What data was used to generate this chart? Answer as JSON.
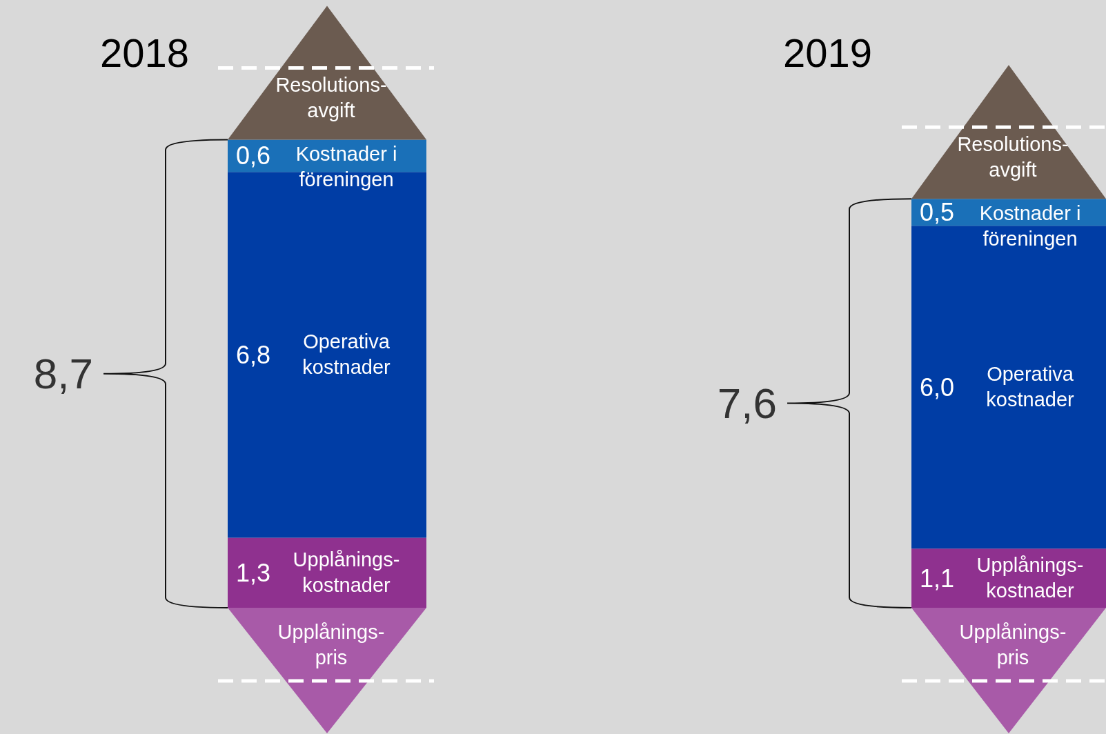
{
  "chart_data": [
    {
      "type": "bar",
      "stacked": true,
      "title": "2018",
      "categories": [
        null
      ],
      "series": [
        {
          "name": "Upplånings-kostnader",
          "color": "#8f318f",
          "values": [
            1.3
          ],
          "value_labels": [
            "1,3"
          ]
        },
        {
          "name": "Operativa kostnader",
          "color": "#003da5",
          "values": [
            6.8
          ],
          "value_labels": [
            "6,8"
          ]
        },
        {
          "name": "Kostnader i föreningen",
          "color": "#1a70b8",
          "values": [
            0.6
          ],
          "value_labels": [
            "0,6"
          ]
        }
      ],
      "totals": [
        "8,7"
      ],
      "annotations": [
        "Resolutions-avgift",
        "Upplånings-pris"
      ]
    },
    {
      "type": "bar",
      "stacked": true,
      "title": "2019",
      "categories": [
        null
      ],
      "series": [
        {
          "name": "Upplånings-kostnader",
          "color": "#8f318f",
          "values": [
            1.1
          ],
          "value_labels": [
            "1,1"
          ]
        },
        {
          "name": "Operativa kostnader",
          "color": "#003da5",
          "values": [
            6.0
          ],
          "value_labels": [
            "6,0"
          ]
        },
        {
          "name": "Kostnader i föreningen",
          "color": "#1a70b8",
          "values": [
            0.5
          ],
          "value_labels": [
            "0,5"
          ]
        }
      ],
      "totals": [
        "7,6"
      ],
      "annotations": [
        "Resolutions-avgift",
        "Upplånings-pris"
      ]
    }
  ]
}
